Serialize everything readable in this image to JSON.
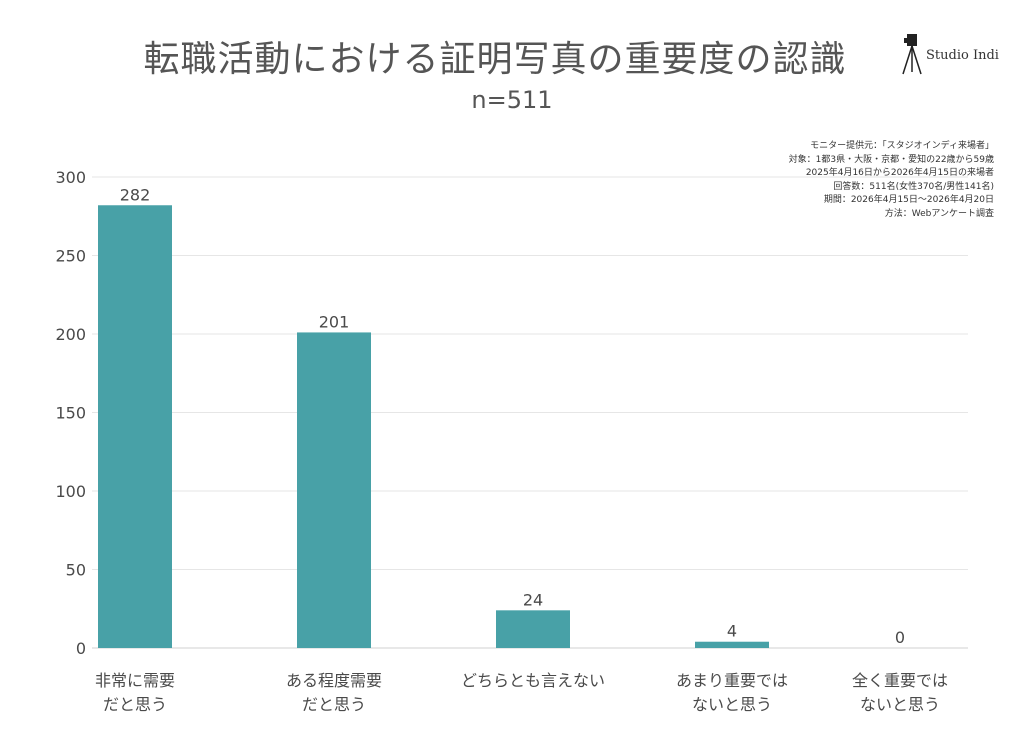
{
  "title": "転職活動における証明写真の重要度の認識",
  "subtitle": "n=511",
  "brand": {
    "name": "Studio Indi",
    "icon": "camera-tripod-icon"
  },
  "notes": [
    "モニター提供元：「スタジオインディ来場者」",
    "対象：1都3県・大阪・京都・愛知の22歳から59歳",
    "2025年4月16日から2026年4月15日の来場者",
    "回答数：511名(女性370名/男性141名)",
    "期間：2026年4月15日〜2026年4月20日",
    "方法：Webアンケート調査"
  ],
  "colors": {
    "bar": "#48a1a7",
    "grid": "#e6e6e6",
    "text": "#4a4a4a"
  },
  "chart_data": {
    "type": "bar",
    "title": "転職活動における証明写真の重要度の認識",
    "subtitle": "n=511",
    "categories": [
      [
        "非常に需要",
        "だと思う"
      ],
      [
        "ある程度需要",
        "だと思う"
      ],
      [
        "どちらとも言えない"
      ],
      [
        "あまり重要では",
        "ないと思う"
      ],
      [
        "全く重要では",
        "ないと思う"
      ]
    ],
    "values": [
      282,
      201,
      24,
      4,
      0
    ],
    "ylim": [
      0,
      300
    ],
    "yticks": [
      0,
      50,
      100,
      150,
      200,
      250,
      300
    ],
    "grid": true,
    "data_labels": true
  }
}
